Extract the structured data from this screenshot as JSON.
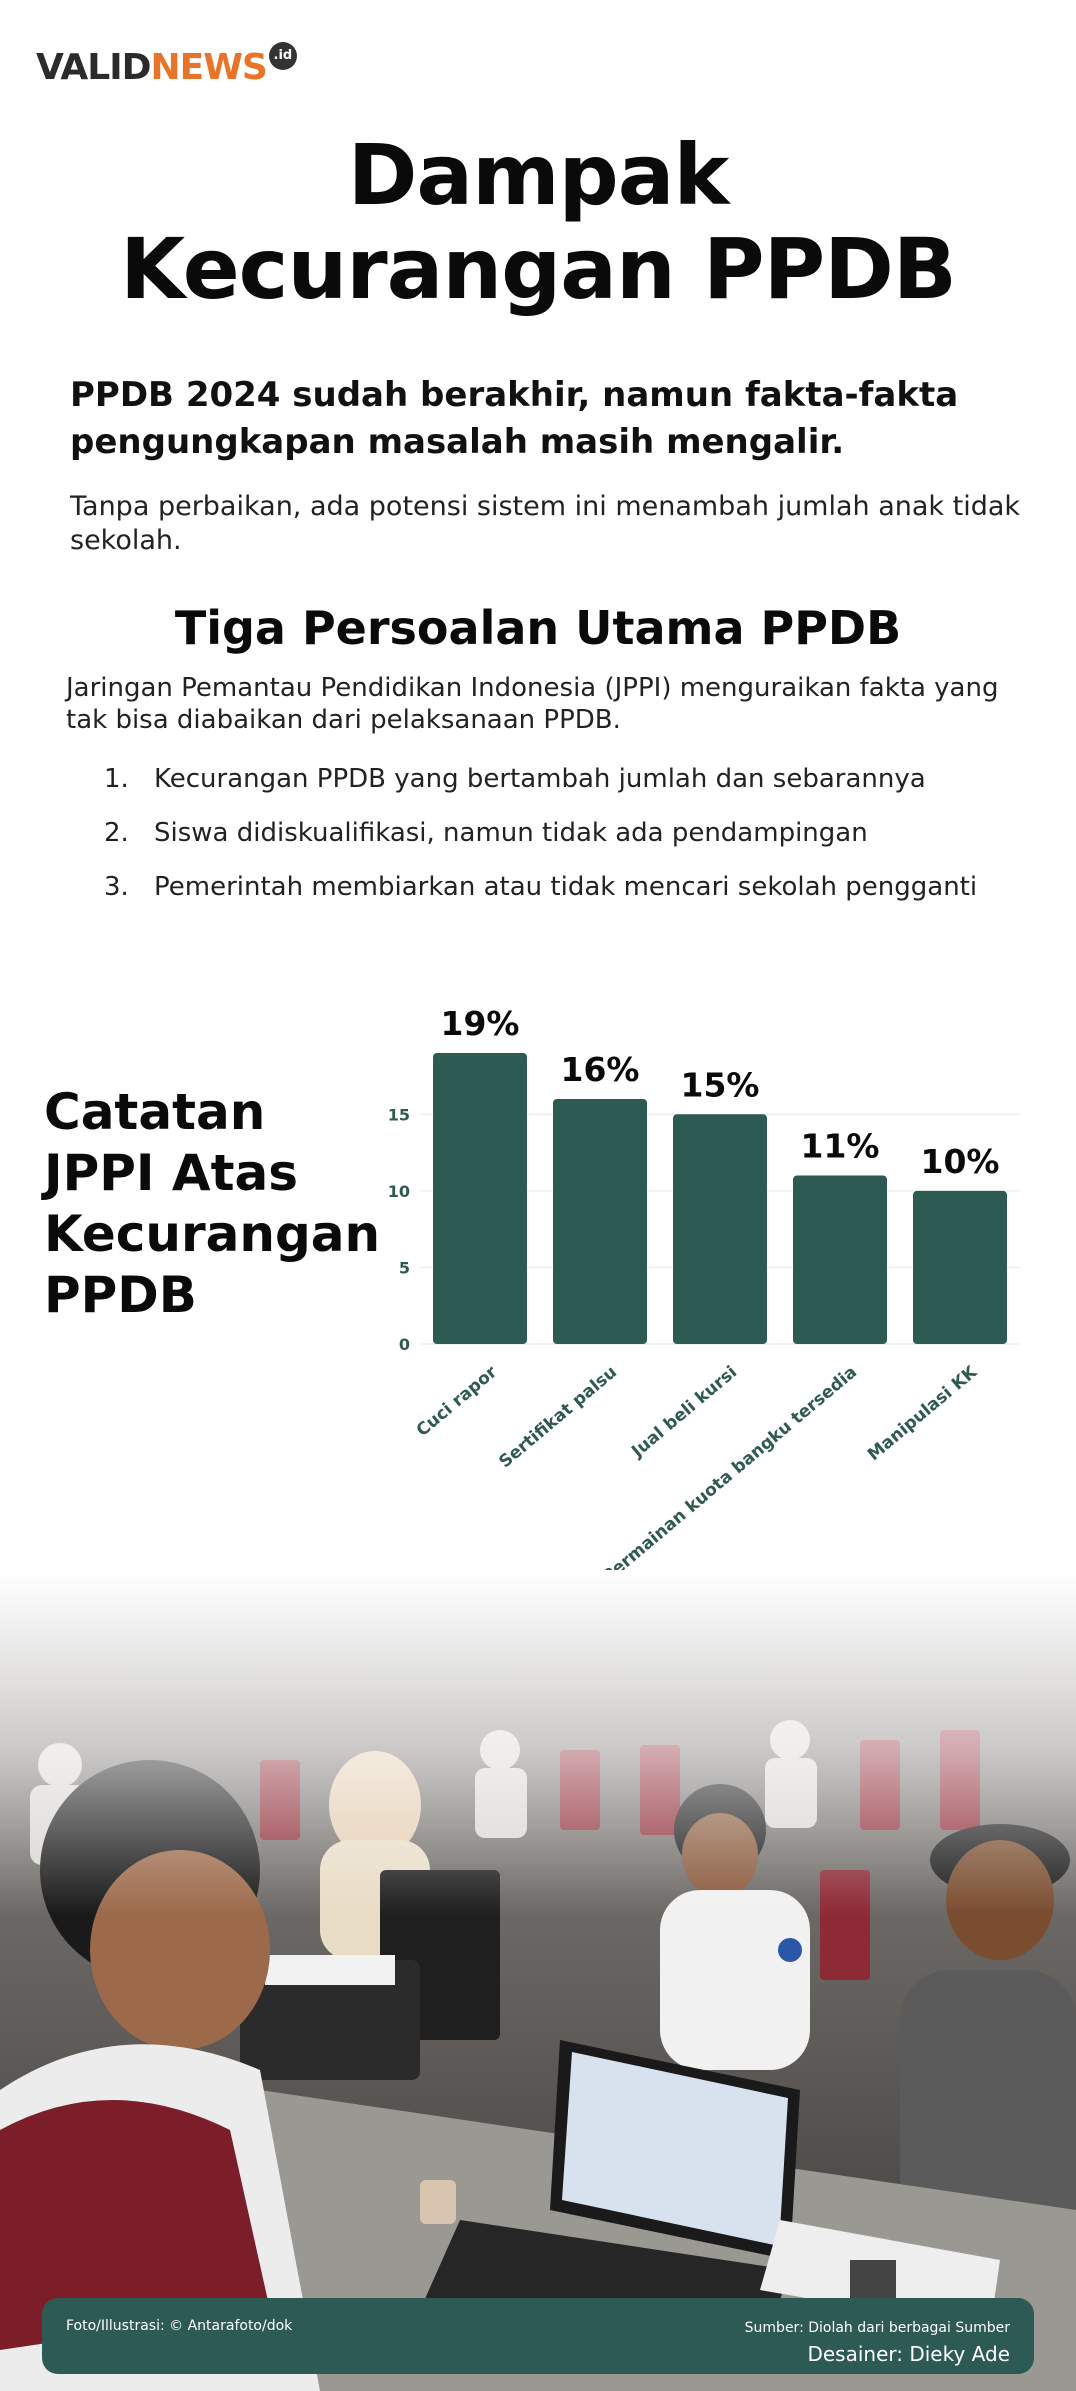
{
  "header": {
    "logo_main": "VALID",
    "logo_accent": "NEWS",
    "logo_tld": ".id",
    "title_line1": "Dampak",
    "title_line2": "Kecurangan PPDB"
  },
  "intro": {
    "lead": "PPDB 2024 sudah berakhir, namun fakta-fakta pengungkapan masalah masih mengalir.",
    "sub": "Tanpa perbaikan, ada potensi sistem ini menambah jumlah anak tidak sekolah."
  },
  "issues": {
    "title": "Tiga Persoalan Utama PPDB",
    "description": "Jaringan Pemantau Pendidikan Indonesia (JPPI) menguraikan fakta yang tak bisa diabaikan dari pelaksanaan PPDB.",
    "items": [
      {
        "num": "1.",
        "text": "Kecurangan PPDB yang bertambah jumlah dan sebarannya"
      },
      {
        "num": "2.",
        "text": "Siswa didiskualifikasi, namun tidak ada pendampingan"
      },
      {
        "num": "3.",
        "text": "Pemerintah membiarkan atau tidak mencari sekolah pengganti"
      }
    ]
  },
  "chart_section": {
    "title": "Catatan JPPI Atas Kecurangan PPDB"
  },
  "chart_data": {
    "type": "bar",
    "categories": [
      "Cuci rapor",
      "Sertifikat palsu",
      "Jual beli kursi",
      "Permainan kuota bangku tersedia",
      "Manipulasi KK"
    ],
    "values": [
      19,
      16,
      15,
      11,
      10
    ],
    "data_labels": [
      "19%",
      "16%",
      "15%",
      "11%",
      "10%"
    ],
    "yticks": [
      0,
      5,
      10,
      15
    ],
    "ylim": [
      0,
      19
    ],
    "grid": true,
    "bar_color": "#2d5a53",
    "title": "Catatan JPPI Atas Kecurangan PPDB",
    "xlabel": "",
    "ylabel": ""
  },
  "footer": {
    "credit": "Foto/Illustrasi: © Antarafoto/dok",
    "source": "Sumber: Diolah dari berbagai Sumber",
    "designer": "Desainer: Dieky Ade"
  },
  "colors": {
    "accent": "#2d5a53",
    "brand_orange": "#e8742a"
  }
}
